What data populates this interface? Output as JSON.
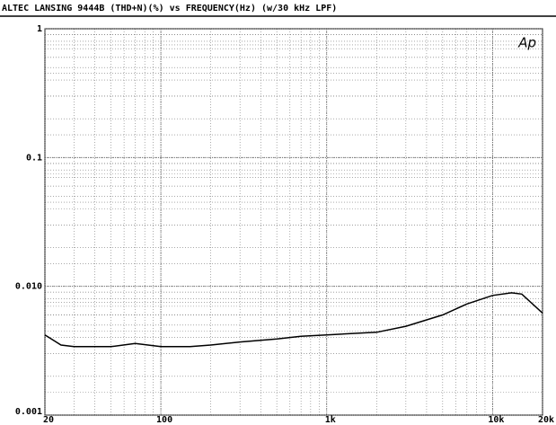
{
  "chart_data": {
    "type": "line",
    "title": "ALTEC LANSING 9444B  (THD+N)(%) vs FREQUENCY(Hz)     (w/30 kHz LPF)",
    "logo": "Ap",
    "x": [
      20,
      25,
      30,
      50,
      70,
      100,
      150,
      200,
      300,
      500,
      700,
      1000,
      2000,
      3000,
      5000,
      7000,
      10000,
      13000,
      15000,
      20000
    ],
    "series": [
      {
        "name": "THD+N",
        "color": "#000000",
        "values": [
          0.0042,
          0.0035,
          0.0034,
          0.0034,
          0.0036,
          0.0034,
          0.0034,
          0.0035,
          0.0037,
          0.0039,
          0.0041,
          0.0042,
          0.0044,
          0.0049,
          0.006,
          0.0073,
          0.0085,
          0.0089,
          0.0087,
          0.0062
        ]
      }
    ],
    "xlim": [
      20,
      20000
    ],
    "xticks": [
      20,
      100,
      {
        "value": 1000,
        "label": "1k"
      },
      {
        "value": 10000,
        "label": "10k"
      },
      {
        "value": 20000,
        "label": "20k"
      }
    ],
    "ylim": [
      0.001,
      1
    ],
    "yticks": [
      0.001,
      {
        "value": 0.01,
        "label": "0.010"
      },
      0.1,
      1
    ],
    "xlog": true,
    "ylog": true,
    "grid": true,
    "minor_grid": true
  }
}
